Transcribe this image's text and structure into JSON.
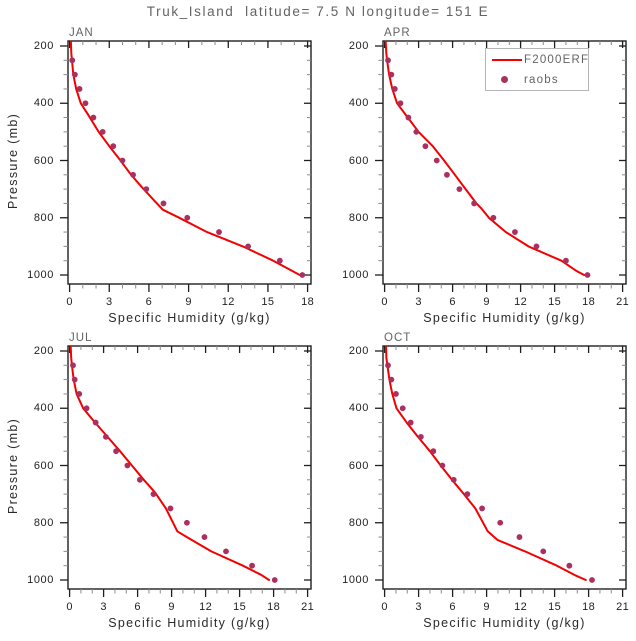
{
  "title": "Truk_Island  latitude= 7.5 N longitude= 151 E",
  "colors": {
    "model_line": "#f40000",
    "raobs": "#a93060",
    "frame": "#1f1f1f",
    "minor_tick": "#8a8a8a",
    "gray_text": "#636363",
    "tick_text": "#1f1f1f",
    "legend_border": "#b5b5b5"
  },
  "legend": {
    "items": [
      {
        "label": "F2000ERF",
        "type": "line"
      },
      {
        "label": "raobs",
        "type": "dot"
      }
    ]
  },
  "chart_data": [
    {
      "type": "line",
      "panel_label": "JAN",
      "xlabel": "Specific Humidity (g/kg)",
      "ylabel": "Pressure (mb)",
      "xlim": [
        0,
        18
      ],
      "ylim": [
        200,
        1000
      ],
      "y_axis_reversed": true,
      "x_ticks": [
        0,
        3,
        6,
        9,
        12,
        15,
        18
      ],
      "x_minor_step": 1,
      "y_ticks": [
        200,
        400,
        600,
        800,
        1000
      ],
      "y_minor_step": 50,
      "series": [
        {
          "name": "F2000ERF",
          "type": "line",
          "color_key": "model_line",
          "points_qp": [
            [
              0.1,
              185
            ],
            [
              0.13,
              225
            ],
            [
              0.18,
              250
            ],
            [
              0.28,
              300
            ],
            [
              0.5,
              350
            ],
            [
              0.85,
              400
            ],
            [
              1.4,
              440
            ],
            [
              2.2,
              500
            ],
            [
              3.0,
              550
            ],
            [
              3.85,
              600
            ],
            [
              4.65,
              650
            ],
            [
              5.6,
              700
            ],
            [
              6.6,
              750
            ],
            [
              7.05,
              772
            ],
            [
              8.3,
              800
            ],
            [
              10.4,
              850
            ],
            [
              13.1,
              900
            ],
            [
              15.4,
              950
            ],
            [
              16.6,
              980
            ],
            [
              17.4,
              1000
            ]
          ]
        },
        {
          "name": "raobs",
          "type": "scatter",
          "color_key": "raobs",
          "points_qp": [
            [
              0.2,
              250
            ],
            [
              0.4,
              300
            ],
            [
              0.75,
              350
            ],
            [
              1.2,
              400
            ],
            [
              1.8,
              450
            ],
            [
              2.5,
              500
            ],
            [
              3.3,
              550
            ],
            [
              4.0,
              600
            ],
            [
              4.8,
              650
            ],
            [
              5.8,
              700
            ],
            [
              7.1,
              750
            ],
            [
              8.9,
              800
            ],
            [
              11.3,
              850
            ],
            [
              13.5,
              900
            ],
            [
              15.9,
              950
            ],
            [
              17.6,
              1000
            ]
          ]
        }
      ]
    },
    {
      "type": "line",
      "panel_label": "APR",
      "xlabel": "Specific Humidity (g/kg)",
      "ylabel": "Pressure (mb)",
      "xlim": [
        0,
        21
      ],
      "ylim": [
        200,
        1000
      ],
      "y_axis_reversed": true,
      "x_ticks": [
        0,
        3,
        6,
        9,
        12,
        15,
        18,
        21
      ],
      "x_minor_step": 1,
      "y_ticks": [
        200,
        400,
        600,
        800,
        1000
      ],
      "y_minor_step": 50,
      "series": [
        {
          "name": "F2000ERF",
          "type": "line",
          "color_key": "model_line",
          "points_qp": [
            [
              0.1,
              185
            ],
            [
              0.15,
              225
            ],
            [
              0.22,
              250
            ],
            [
              0.4,
              300
            ],
            [
              0.68,
              350
            ],
            [
              1.1,
              400
            ],
            [
              1.95,
              445
            ],
            [
              3.0,
              500
            ],
            [
              4.25,
              550
            ],
            [
              5.25,
              600
            ],
            [
              6.2,
              650
            ],
            [
              7.15,
              700
            ],
            [
              8.1,
              750
            ],
            [
              8.55,
              768
            ],
            [
              9.2,
              800
            ],
            [
              10.7,
              850
            ],
            [
              12.7,
              900
            ],
            [
              15.6,
              950
            ],
            [
              16.9,
              985
            ],
            [
              17.6,
              1000
            ]
          ]
        },
        {
          "name": "raobs",
          "type": "scatter",
          "color_key": "raobs",
          "points_qp": [
            [
              0.3,
              250
            ],
            [
              0.6,
              300
            ],
            [
              0.9,
              350
            ],
            [
              1.4,
              400
            ],
            [
              2.1,
              450
            ],
            [
              2.8,
              500
            ],
            [
              3.6,
              550
            ],
            [
              4.6,
              600
            ],
            [
              5.5,
              650
            ],
            [
              6.6,
              700
            ],
            [
              7.9,
              750
            ],
            [
              9.6,
              800
            ],
            [
              11.5,
              850
            ],
            [
              13.4,
              900
            ],
            [
              16.0,
              950
            ],
            [
              17.9,
              1000
            ]
          ]
        }
      ]
    },
    {
      "type": "line",
      "panel_label": "JUL",
      "xlabel": "Specific Humidity (g/kg)",
      "ylabel": "Pressure (mb)",
      "xlim": [
        0,
        21
      ],
      "ylim": [
        200,
        1000
      ],
      "y_axis_reversed": true,
      "x_ticks": [
        0,
        3,
        6,
        9,
        12,
        15,
        18,
        21
      ],
      "x_minor_step": 1,
      "y_ticks": [
        200,
        400,
        600,
        800,
        1000
      ],
      "y_minor_step": 50,
      "series": [
        {
          "name": "F2000ERF",
          "type": "line",
          "color_key": "model_line",
          "points_qp": [
            [
              0.1,
              185
            ],
            [
              0.14,
              225
            ],
            [
              0.2,
              250
            ],
            [
              0.36,
              300
            ],
            [
              0.62,
              350
            ],
            [
              1.2,
              400
            ],
            [
              2.25,
              450
            ],
            [
              3.35,
              500
            ],
            [
              4.45,
              550
            ],
            [
              5.5,
              600
            ],
            [
              6.55,
              650
            ],
            [
              7.55,
              695
            ],
            [
              7.9,
              715
            ],
            [
              8.5,
              750
            ],
            [
              9.5,
              830
            ],
            [
              10.35,
              850
            ],
            [
              12.5,
              900
            ],
            [
              15.3,
              950
            ],
            [
              16.9,
              982
            ],
            [
              17.6,
              1000
            ]
          ]
        },
        {
          "name": "raobs",
          "type": "scatter",
          "color_key": "raobs",
          "points_qp": [
            [
              0.3,
              250
            ],
            [
              0.45,
              300
            ],
            [
              0.85,
              350
            ],
            [
              1.5,
              400
            ],
            [
              2.3,
              450
            ],
            [
              3.2,
              500
            ],
            [
              4.1,
              550
            ],
            [
              5.1,
              600
            ],
            [
              6.2,
              650
            ],
            [
              7.4,
              700
            ],
            [
              8.9,
              750
            ],
            [
              10.35,
              800
            ],
            [
              11.9,
              850
            ],
            [
              13.8,
              900
            ],
            [
              16.1,
              950
            ],
            [
              18.1,
              1000
            ]
          ]
        }
      ]
    },
    {
      "type": "line",
      "panel_label": "OCT",
      "xlabel": "Specific Humidity (g/kg)",
      "ylabel": "Pressure (mb)",
      "xlim": [
        0,
        21
      ],
      "ylim": [
        200,
        1000
      ],
      "y_axis_reversed": true,
      "x_ticks": [
        0,
        3,
        6,
        9,
        12,
        15,
        18,
        21
      ],
      "x_minor_step": 1,
      "y_ticks": [
        200,
        400,
        600,
        800,
        1000
      ],
      "y_minor_step": 50,
      "series": [
        {
          "name": "F2000ERF",
          "type": "line",
          "color_key": "model_line",
          "points_qp": [
            [
              0.12,
              185
            ],
            [
              0.16,
              225
            ],
            [
              0.25,
              250
            ],
            [
              0.42,
              300
            ],
            [
              0.68,
              350
            ],
            [
              1.05,
              400
            ],
            [
              1.95,
              450
            ],
            [
              2.95,
              500
            ],
            [
              4.0,
              550
            ],
            [
              4.95,
              600
            ],
            [
              5.95,
              650
            ],
            [
              7.0,
              700
            ],
            [
              8.0,
              750
            ],
            [
              9.1,
              830
            ],
            [
              9.95,
              860
            ],
            [
              12.4,
              900
            ],
            [
              15.2,
              950
            ],
            [
              16.9,
              985
            ],
            [
              17.75,
              1000
            ]
          ]
        },
        {
          "name": "raobs",
          "type": "scatter",
          "color_key": "raobs",
          "points_qp": [
            [
              0.3,
              250
            ],
            [
              0.6,
              300
            ],
            [
              1.0,
              350
            ],
            [
              1.6,
              400
            ],
            [
              2.3,
              450
            ],
            [
              3.2,
              500
            ],
            [
              4.3,
              550
            ],
            [
              5.1,
              600
            ],
            [
              6.1,
              650
            ],
            [
              7.3,
              700
            ],
            [
              8.6,
              750
            ],
            [
              10.2,
              800
            ],
            [
              11.9,
              850
            ],
            [
              14.0,
              900
            ],
            [
              16.3,
              950
            ],
            [
              18.3,
              1000
            ]
          ]
        }
      ]
    }
  ]
}
